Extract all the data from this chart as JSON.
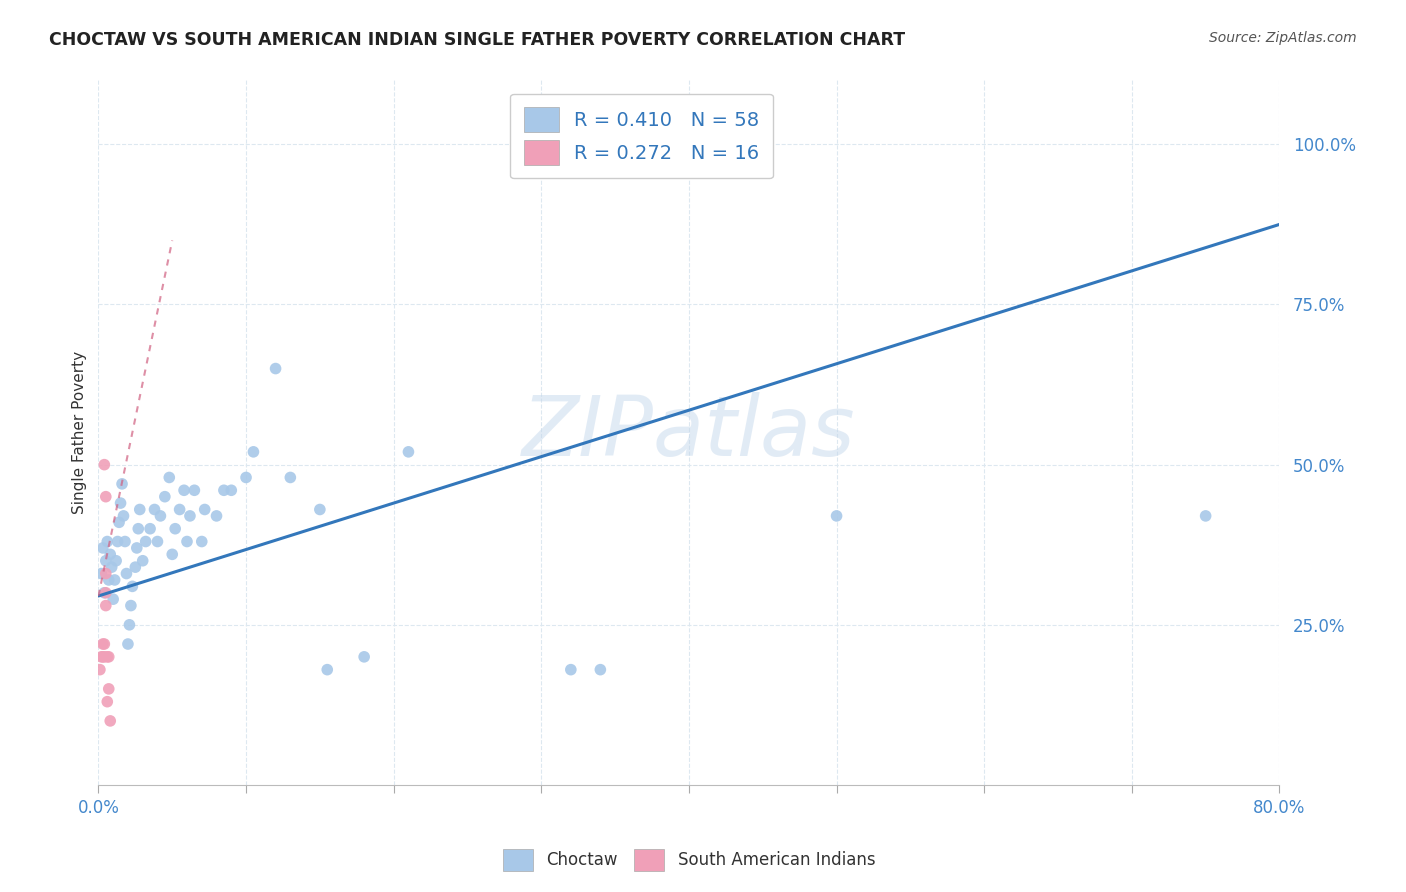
{
  "title": "CHOCTAW VS SOUTH AMERICAN INDIAN SINGLE FATHER POVERTY CORRELATION CHART",
  "source": "Source: ZipAtlas.com",
  "ylabel": "Single Father Poverty",
  "xlim": [
    0.0,
    0.8
  ],
  "ylim": [
    0.0,
    1.1
  ],
  "watermark": "ZIPatlas",
  "choctaw_color": "#a8c8e8",
  "south_american_color": "#f0a0b8",
  "trend_blue_color": "#3377bb",
  "trend_pink_color": "#d06080",
  "background_color": "#ffffff",
  "grid_color": "#dde8f0",
  "choctaw_x": [
    0.002,
    0.003,
    0.004,
    0.005,
    0.006,
    0.007,
    0.008,
    0.009,
    0.01,
    0.011,
    0.012,
    0.013,
    0.014,
    0.015,
    0.016,
    0.017,
    0.018,
    0.019,
    0.02,
    0.021,
    0.022,
    0.023,
    0.025,
    0.026,
    0.027,
    0.028,
    0.03,
    0.032,
    0.035,
    0.038,
    0.04,
    0.042,
    0.045,
    0.048,
    0.05,
    0.052,
    0.055,
    0.058,
    0.06,
    0.062,
    0.065,
    0.07,
    0.072,
    0.08,
    0.085,
    0.09,
    0.1,
    0.105,
    0.12,
    0.13,
    0.15,
    0.155,
    0.18,
    0.21,
    0.32,
    0.34,
    0.5,
    0.75
  ],
  "choctaw_y": [
    0.33,
    0.37,
    0.3,
    0.35,
    0.38,
    0.32,
    0.36,
    0.34,
    0.29,
    0.32,
    0.35,
    0.38,
    0.41,
    0.44,
    0.47,
    0.42,
    0.38,
    0.33,
    0.22,
    0.25,
    0.28,
    0.31,
    0.34,
    0.37,
    0.4,
    0.43,
    0.35,
    0.38,
    0.4,
    0.43,
    0.38,
    0.42,
    0.45,
    0.48,
    0.36,
    0.4,
    0.43,
    0.46,
    0.38,
    0.42,
    0.46,
    0.38,
    0.43,
    0.42,
    0.46,
    0.46,
    0.48,
    0.52,
    0.65,
    0.48,
    0.43,
    0.18,
    0.2,
    0.52,
    0.18,
    0.18,
    0.42,
    0.42
  ],
  "south_x": [
    0.001,
    0.002,
    0.003,
    0.003,
    0.004,
    0.004,
    0.004,
    0.005,
    0.005,
    0.005,
    0.005,
    0.006,
    0.006,
    0.007,
    0.007,
    0.008
  ],
  "south_y": [
    0.18,
    0.2,
    0.2,
    0.22,
    0.2,
    0.22,
    0.5,
    0.45,
    0.33,
    0.3,
    0.28,
    0.13,
    0.2,
    0.2,
    0.15,
    0.1
  ],
  "blue_trend_x0": 0.0,
  "blue_trend_y0": 0.295,
  "blue_trend_x1": 0.8,
  "blue_trend_y1": 0.875,
  "pink_trend_x0": 0.0,
  "pink_trend_y0": 0.295,
  "pink_trend_x1": 0.05,
  "pink_trend_y1": 0.85
}
